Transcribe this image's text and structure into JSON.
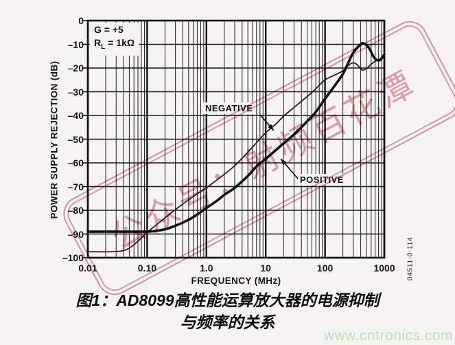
{
  "figure": {
    "caption_line1": "图1：AD8099高性能运算放大器的电源抑制",
    "caption_line2": "与频率的关系",
    "side_code": "04511-0-114",
    "site_watermark": "www.cntronics.com"
  },
  "stamp": {
    "text": "公众号：射频百花潭",
    "color": "#c73e50"
  },
  "chart_data": {
    "type": "line",
    "title": "",
    "xlabel": "FREQUENCY (MHz)",
    "ylabel": "POWER SUPPLY REJECTION (dB)",
    "x_scale": "log",
    "xlim": [
      0.01,
      1000
    ],
    "ylim": [
      -100,
      0
    ],
    "grid": "log-x major+minor, linear-y major",
    "x_ticks": [
      "0.01",
      "0.10",
      "1.0",
      "10",
      "100",
      "1000"
    ],
    "x_tick_values": [
      0.01,
      0.1,
      1,
      10,
      100,
      1000
    ],
    "y_ticks": [
      "0",
      "–10",
      "–20",
      "–30",
      "–40",
      "–50",
      "–60",
      "–70",
      "–80",
      "–90",
      "–100"
    ],
    "y_tick_values": [
      0,
      -10,
      -20,
      -30,
      -40,
      -50,
      -60,
      -70,
      -80,
      -90,
      -100
    ],
    "annotations": {
      "gain": "G = +5",
      "load_r": "R",
      "load_sub": "L",
      "load_val": "= 1kΩ"
    },
    "series": [
      {
        "name": "NEGATIVE",
        "color": "#2b1a1a",
        "width": 1.8,
        "points": [
          [
            0.01,
            -97.5
          ],
          [
            0.03,
            -97.4
          ],
          [
            0.045,
            -96.5
          ],
          [
            0.06,
            -94.5
          ],
          [
            0.08,
            -91.7
          ],
          [
            0.1,
            -89.3
          ],
          [
            0.15,
            -85.7
          ],
          [
            0.2,
            -83.2
          ],
          [
            0.3,
            -79.7
          ],
          [
            0.5,
            -75.6
          ],
          [
            0.7,
            -73
          ],
          [
            1,
            -70.5
          ],
          [
            1.5,
            -67.2
          ],
          [
            2,
            -64.8
          ],
          [
            3,
            -61.2
          ],
          [
            5,
            -55.5
          ],
          [
            7,
            -51.5
          ],
          [
            10,
            -47.3
          ],
          [
            15,
            -43.5
          ],
          [
            20,
            -40.3
          ],
          [
            30,
            -36.6
          ],
          [
            50,
            -32
          ],
          [
            70,
            -28.7
          ],
          [
            100,
            -25
          ],
          [
            150,
            -22.8
          ],
          [
            200,
            -21.2
          ],
          [
            250,
            -18.8
          ],
          [
            300,
            -17.8
          ],
          [
            350,
            -18.6
          ],
          [
            420,
            -20.8
          ],
          [
            500,
            -20.2
          ],
          [
            600,
            -18.4
          ],
          [
            700,
            -17.2
          ],
          [
            850,
            -16.2
          ],
          [
            1000,
            -15.6
          ]
        ]
      },
      {
        "name": "POSITIVE",
        "color": "#121212",
        "width": 3.6,
        "points": [
          [
            0.01,
            -89
          ],
          [
            0.08,
            -89
          ],
          [
            0.1,
            -89
          ],
          [
            0.13,
            -88.8
          ],
          [
            0.2,
            -88
          ],
          [
            0.3,
            -86.5
          ],
          [
            0.5,
            -84
          ],
          [
            0.7,
            -81.8
          ],
          [
            1,
            -79
          ],
          [
            1.5,
            -76
          ],
          [
            2,
            -73.5
          ],
          [
            3,
            -70.5
          ],
          [
            5,
            -65.5
          ],
          [
            7,
            -61.5
          ],
          [
            10,
            -58.3
          ],
          [
            15,
            -54.5
          ],
          [
            20,
            -51.8
          ],
          [
            30,
            -48
          ],
          [
            50,
            -42.5
          ],
          [
            70,
            -38.5
          ],
          [
            100,
            -33
          ],
          [
            150,
            -27
          ],
          [
            200,
            -22.5
          ],
          [
            250,
            -17.5
          ],
          [
            300,
            -13.5
          ],
          [
            400,
            -10
          ],
          [
            450,
            -9.6
          ],
          [
            550,
            -11.5
          ],
          [
            650,
            -15
          ],
          [
            750,
            -16.6
          ],
          [
            850,
            -16.6
          ],
          [
            1000,
            -14.3
          ]
        ]
      }
    ]
  }
}
